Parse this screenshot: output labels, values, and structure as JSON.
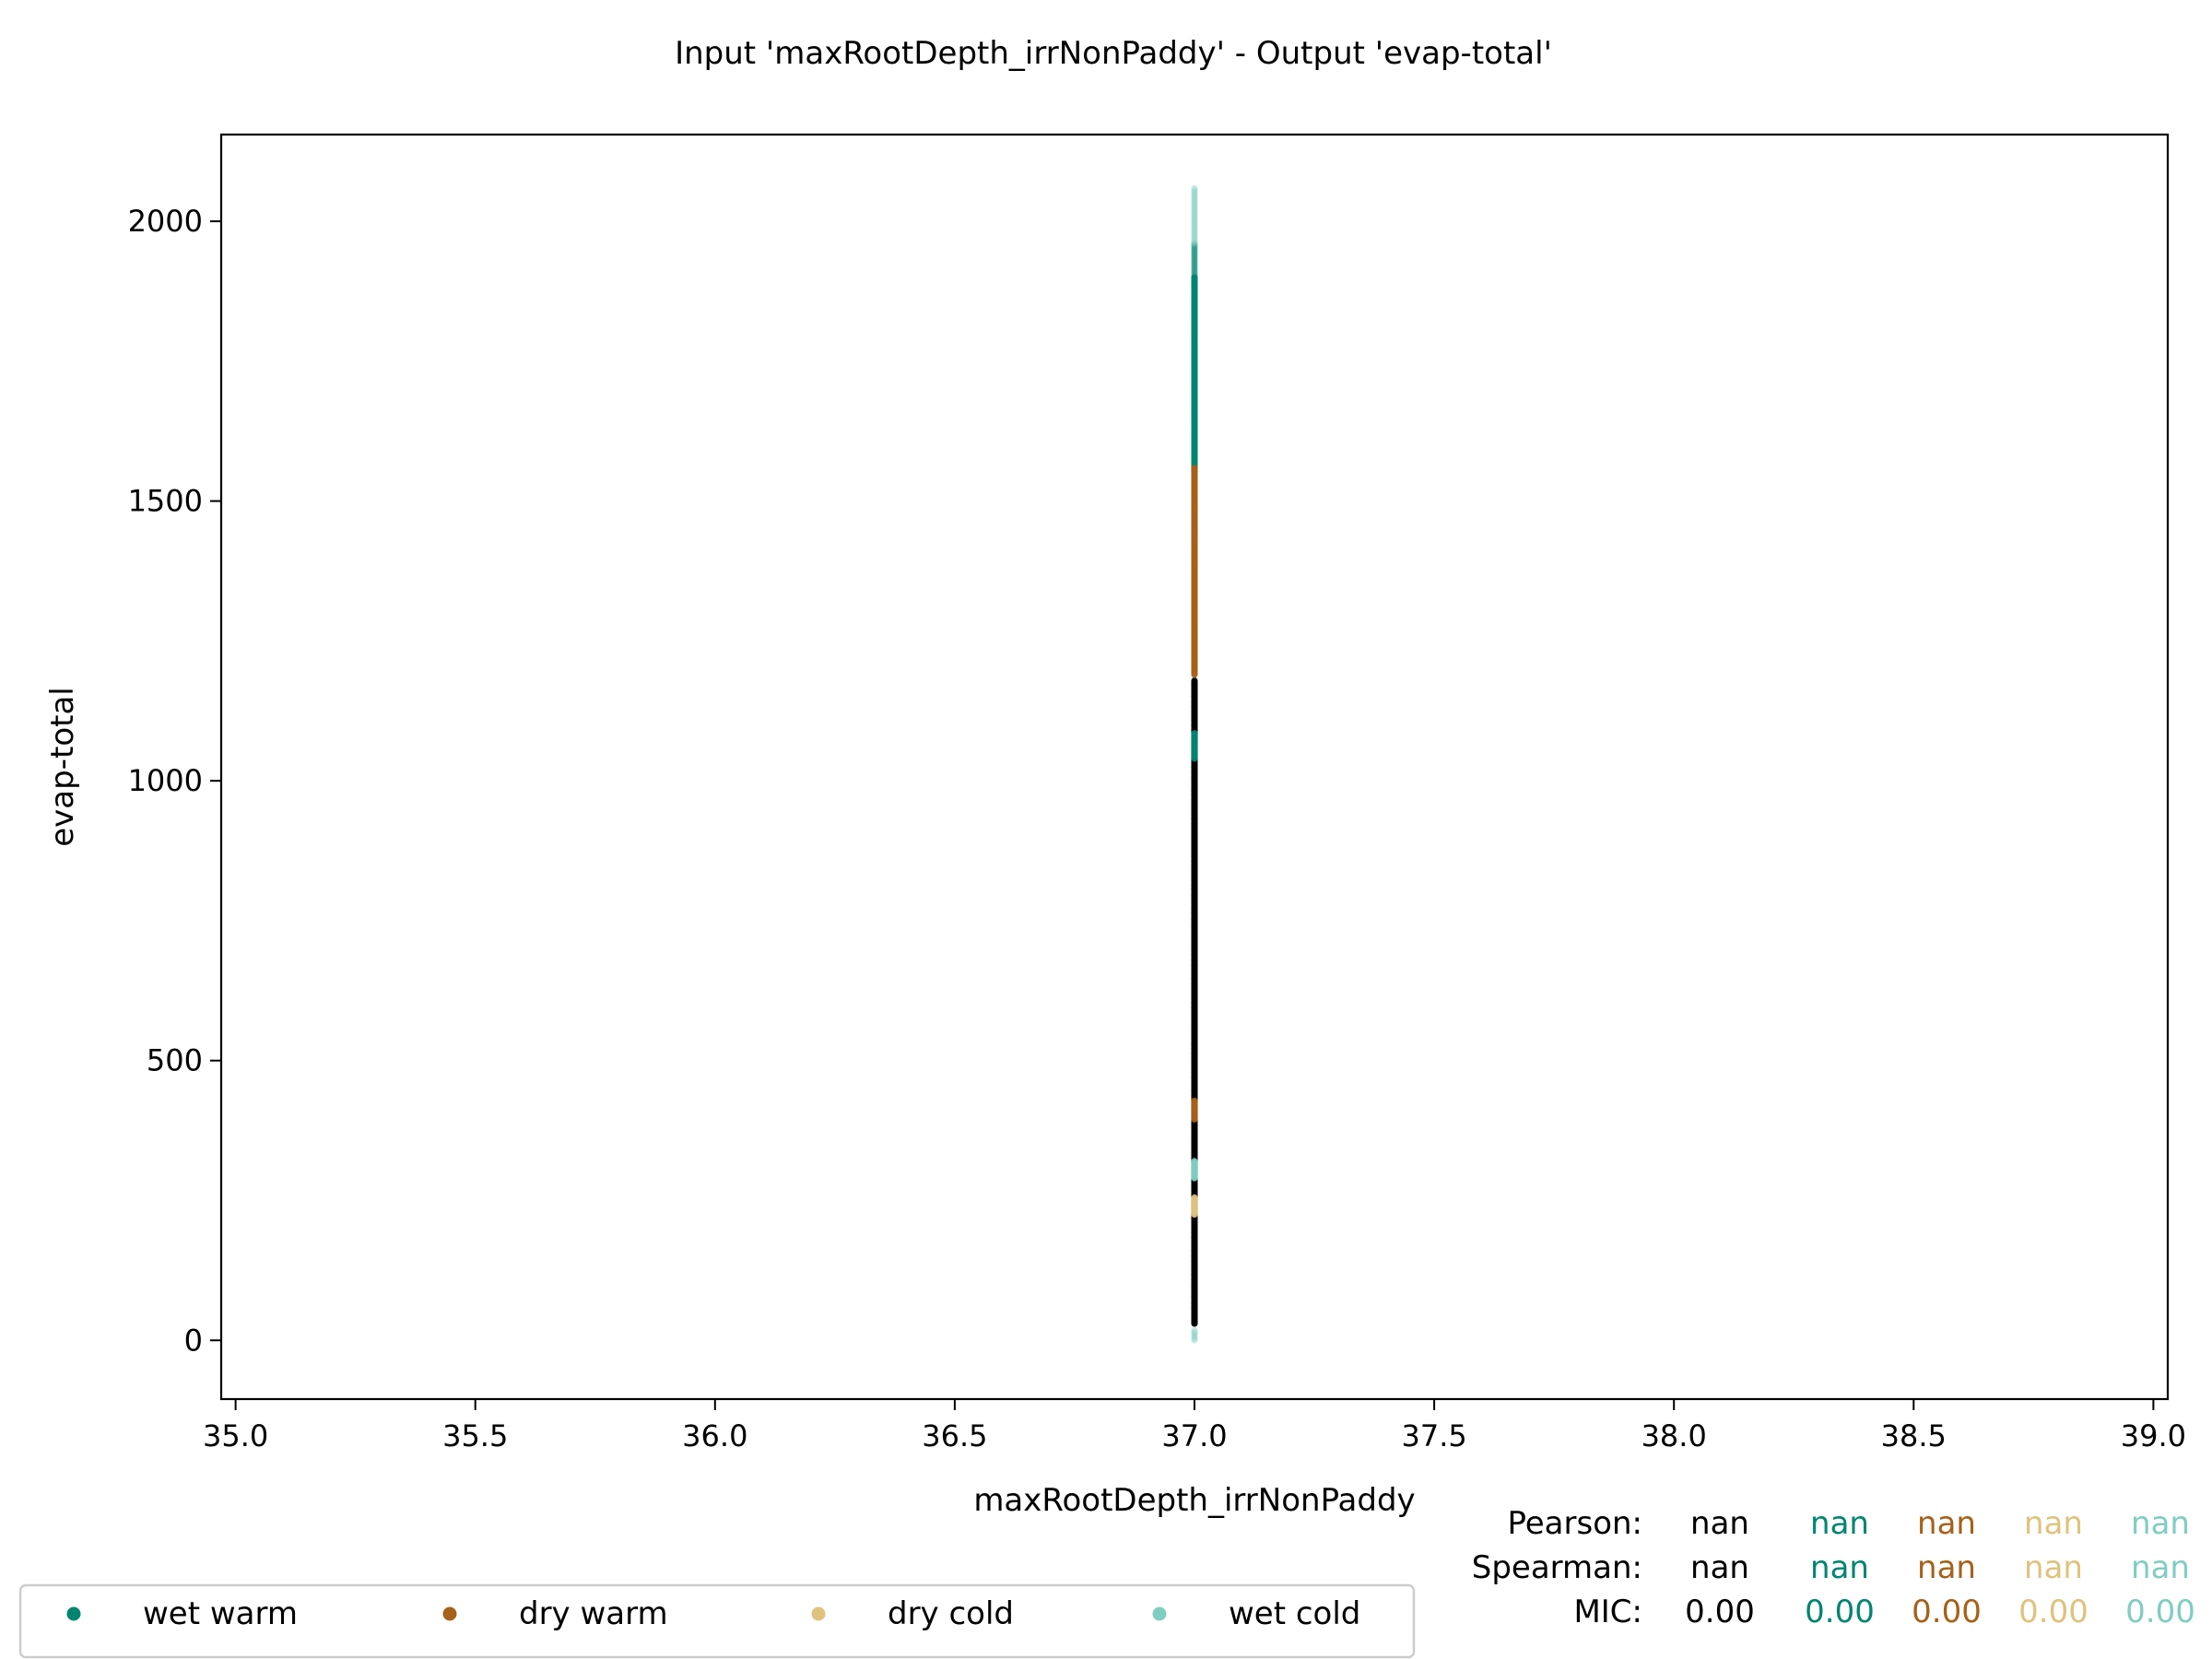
{
  "chart_data": {
    "type": "scatter",
    "title": "Input 'maxRootDepth_irrNonPaddy' - Output 'evap-total'",
    "xlabel": "maxRootDepth_irrNonPaddy",
    "ylabel": "evap-total",
    "xlim": [
      34.97,
      39.03
    ],
    "ylim": [
      -105,
      2155
    ],
    "xticks": [
      "35.0",
      "35.5",
      "36.0",
      "36.5",
      "37.0",
      "37.5",
      "38.0",
      "38.5",
      "39.0"
    ],
    "yticks": [
      "0",
      "500",
      "1000",
      "1500",
      "2000"
    ],
    "x_value": 37.0,
    "grid": false,
    "series": [
      {
        "name": "all",
        "color": "#000000",
        "ranges": [
          [
            30,
            1180
          ]
        ]
      },
      {
        "name": "wet warm",
        "color": "#018571",
        "ranges": [
          [
            1555,
            1960
          ],
          [
            1040,
            1085
          ]
        ]
      },
      {
        "name": "dry warm",
        "color": "#a6611a",
        "ranges": [
          [
            1190,
            1560
          ],
          [
            395,
            430
          ]
        ]
      },
      {
        "name": "dry cold",
        "color": "#dfc27d",
        "ranges": [
          [
            225,
            255
          ]
        ]
      },
      {
        "name": "wet cold",
        "color": "#80cdc1",
        "ranges": [
          [
            290,
            320
          ],
          [
            0,
            20
          ],
          [
            1960,
            2060
          ]
        ]
      }
    ],
    "legend": {
      "position": "bottom-left",
      "entries": [
        {
          "label": "wet warm",
          "color": "#018571"
        },
        {
          "label": "dry warm",
          "color": "#a6611a"
        },
        {
          "label": "dry cold",
          "color": "#dfc27d"
        },
        {
          "label": "wet cold",
          "color": "#80cdc1"
        }
      ]
    },
    "stats": {
      "rows": [
        {
          "label": "Pearson:",
          "values": [
            "nan",
            "nan",
            "nan",
            "nan",
            "nan"
          ]
        },
        {
          "label": "Spearman:",
          "values": [
            "nan",
            "nan",
            "nan",
            "nan",
            "nan"
          ]
        },
        {
          "label": "MIC:",
          "values": [
            "0.00",
            "0.00",
            "0.00",
            "0.00",
            "0.00"
          ]
        }
      ],
      "colors": [
        "#000000",
        "#018571",
        "#a6611a",
        "#dfc27d",
        "#80cdc1"
      ]
    }
  }
}
